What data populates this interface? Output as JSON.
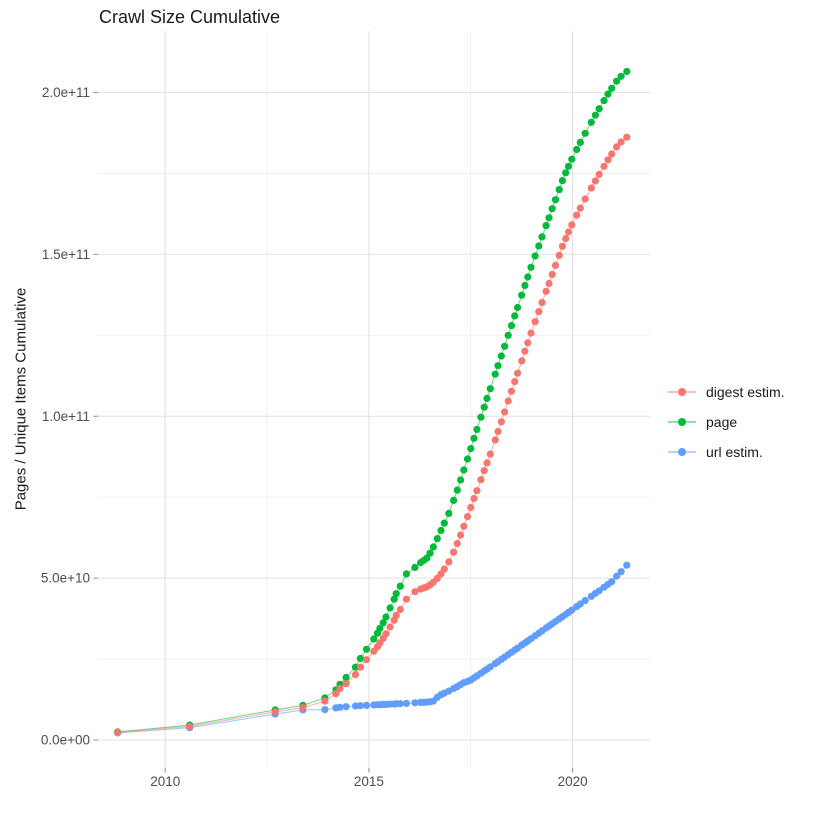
{
  "chart": {
    "title": "Crawl Size Cumulative",
    "ylabel": "Pages / Unique Items Cumulative",
    "legend": {
      "items": [
        {
          "label": "digest estim.",
          "color": "#F8766D"
        },
        {
          "label": "page",
          "color": "#00BA38"
        },
        {
          "label": "url estim.",
          "color": "#619CFF"
        }
      ]
    }
  },
  "chart_data": {
    "type": "scatter",
    "title": "Crawl Size Cumulative",
    "xlabel": "",
    "ylabel": "Pages / Unique Items Cumulative",
    "grid": true,
    "legend_position": "right",
    "xlim": [
      2008.35,
      2021.9
    ],
    "ylim": [
      -8650000000,
      219000000000
    ],
    "x_ticks": {
      "major": [
        2010,
        2015,
        2020
      ],
      "labels": [
        "2010",
        "2015",
        "2020"
      ],
      "minor": [
        2012.5,
        2017.5
      ]
    },
    "y_ticks": {
      "major": [
        0,
        50000000000,
        100000000000,
        150000000000,
        200000000000
      ],
      "labels": [
        "0.0e+00",
        "5.0e+10",
        "1.0e+11",
        "1.5e+11",
        "2.0e+11"
      ],
      "minor": [
        25000000000,
        75000000000,
        125000000000,
        175000000000
      ]
    },
    "y_multiplier": 1000000000,
    "x": [
      2008.83,
      2010.6,
      2012.7,
      2013.38,
      2013.92,
      2014.19,
      2014.29,
      2014.44,
      2014.67,
      2014.79,
      2014.94,
      2015.12,
      2015.21,
      2015.27,
      2015.35,
      2015.42,
      2015.52,
      2015.62,
      2015.67,
      2015.77,
      2015.92,
      2016.13,
      2016.27,
      2016.35,
      2016.42,
      2016.5,
      2016.58,
      2016.68,
      2016.77,
      2016.85,
      2016.96,
      2017.08,
      2017.17,
      2017.25,
      2017.33,
      2017.42,
      2017.5,
      2017.58,
      2017.65,
      2017.75,
      2017.83,
      2017.9,
      2017.98,
      2018.1,
      2018.17,
      2018.25,
      2018.33,
      2018.42,
      2018.5,
      2018.58,
      2018.65,
      2018.75,
      2018.83,
      2018.9,
      2018.98,
      2019.08,
      2019.17,
      2019.25,
      2019.35,
      2019.42,
      2019.5,
      2019.58,
      2019.67,
      2019.75,
      2019.83,
      2019.9,
      2019.98,
      2020.1,
      2020.19,
      2020.31,
      2020.46,
      2020.56,
      2020.65,
      2020.77,
      2020.87,
      2020.96,
      2021.08,
      2021.19,
      2021.33
    ],
    "series": [
      {
        "name": "page",
        "color": "#00BA38",
        "values": [
          2.5,
          4.6,
          9.3,
          10.7,
          13.0,
          15.5,
          17.2,
          19.3,
          22.5,
          25.2,
          28.0,
          31.2,
          33.0,
          34.5,
          36.2,
          38.0,
          40.8,
          43.5,
          45.2,
          47.5,
          51.3,
          53.3,
          54.8,
          55.5,
          56.2,
          57.7,
          59.6,
          62.2,
          64.7,
          67.0,
          70.0,
          74.0,
          77.2,
          80.3,
          83.4,
          86.8,
          90.0,
          93.2,
          95.9,
          99.7,
          102.8,
          105.5,
          108.5,
          113.0,
          115.6,
          118.6,
          121.6,
          125.0,
          128.0,
          131.0,
          133.6,
          137.4,
          140.4,
          143.0,
          146.0,
          149.5,
          152.6,
          155.4,
          158.9,
          161.3,
          164.1,
          166.9,
          170.0,
          172.8,
          175.2,
          177.2,
          179.4,
          182.4,
          184.6,
          187.4,
          190.8,
          193.0,
          195.0,
          197.5,
          199.5,
          201.3,
          203.5,
          205.0,
          206.5
        ]
      },
      {
        "name": "url estim.",
        "color": "#619CFF",
        "values": [
          2.2,
          3.8,
          8.0,
          9.3,
          9.4,
          9.9,
          10.1,
          10.3,
          10.5,
          10.6,
          10.7,
          10.8,
          10.9,
          10.9,
          11.0,
          11.0,
          11.1,
          11.1,
          11.2,
          11.2,
          11.3,
          11.5,
          11.6,
          11.6,
          11.7,
          11.8,
          12.0,
          13.2,
          14.0,
          14.5,
          15.1,
          15.9,
          16.5,
          17.1,
          17.7,
          18.1,
          18.5,
          19.2,
          19.8,
          20.6,
          21.3,
          21.9,
          22.6,
          23.6,
          24.2,
          24.9,
          25.6,
          26.4,
          27.1,
          27.8,
          28.4,
          29.3,
          30.0,
          30.6,
          31.3,
          32.2,
          33.0,
          33.7,
          34.6,
          35.2,
          35.9,
          36.6,
          37.4,
          38.1,
          38.8,
          39.4,
          40.1,
          41.2,
          42.0,
          43.1,
          44.4,
          45.3,
          46.1,
          47.2,
          48.1,
          48.9,
          50.6,
          52.0,
          54.0
        ]
      },
      {
        "name": "digest estim.",
        "color": "#F8766D",
        "values": [
          2.4,
          4.2,
          8.7,
          10.0,
          12.0,
          14.3,
          15.9,
          17.4,
          20.2,
          22.5,
          24.8,
          27.4,
          28.8,
          30.0,
          31.4,
          32.8,
          34.9,
          37.0,
          38.5,
          40.3,
          43.5,
          45.8,
          46.6,
          47.0,
          47.3,
          47.9,
          48.7,
          49.9,
          51.3,
          52.8,
          55.0,
          58.0,
          60.7,
          63.3,
          66.0,
          69.0,
          71.8,
          74.6,
          77.0,
          80.4,
          83.2,
          85.6,
          88.3,
          92.7,
          95.3,
          98.3,
          101.3,
          104.7,
          107.7,
          110.7,
          113.3,
          117.1,
          120.1,
          122.7,
          125.7,
          129.2,
          132.3,
          135.1,
          138.6,
          141.0,
          143.8,
          146.6,
          149.7,
          152.5,
          154.9,
          156.9,
          159.1,
          162.1,
          164.3,
          167.1,
          170.5,
          172.7,
          174.7,
          177.2,
          179.2,
          181.0,
          183.2,
          184.7,
          186.2
        ]
      }
    ]
  },
  "style": {
    "grid_major_color": "#E2E2E2",
    "grid_minor_color": "#EFEFEF",
    "tick_color": "#999999",
    "tick_label_color": "#4D4D4D"
  }
}
